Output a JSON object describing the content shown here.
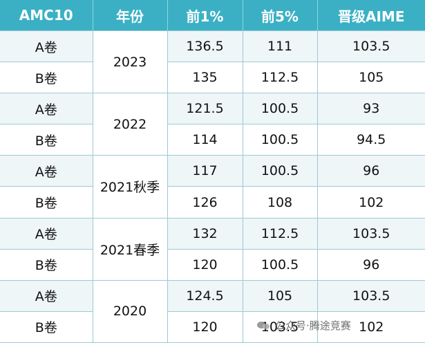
{
  "table": {
    "headers": [
      "AMC10",
      "年份",
      "前1%",
      "前5%",
      "晋级AIME"
    ],
    "groups": [
      {
        "year": "2023",
        "rows": [
          {
            "paper": "A卷",
            "top1": "136.5",
            "top5": "111",
            "aime": "103.5"
          },
          {
            "paper": "B卷",
            "top1": "135",
            "top5": "112.5",
            "aime": "105"
          }
        ]
      },
      {
        "year": "2022",
        "rows": [
          {
            "paper": "A卷",
            "top1": "121.5",
            "top5": "100.5",
            "aime": "93"
          },
          {
            "paper": "B卷",
            "top1": "114",
            "top5": "100.5",
            "aime": "94.5"
          }
        ]
      },
      {
        "year": "2021秋季",
        "rows": [
          {
            "paper": "A卷",
            "top1": "117",
            "top5": "100.5",
            "aime": "96"
          },
          {
            "paper": "B卷",
            "top1": "126",
            "top5": "108",
            "aime": "102"
          }
        ]
      },
      {
        "year": "2021春季",
        "rows": [
          {
            "paper": "A卷",
            "top1": "132",
            "top5": "112.5",
            "aime": "103.5"
          },
          {
            "paper": "B卷",
            "top1": "120",
            "top5": "100.5",
            "aime": "96"
          }
        ]
      },
      {
        "year": "2020",
        "rows": [
          {
            "paper": "A卷",
            "top1": "124.5",
            "top5": "105",
            "aime": "103.5"
          },
          {
            "paper": "B卷",
            "top1": "120",
            "top5": "103.5",
            "aime": "102"
          }
        ]
      }
    ]
  },
  "watermark": {
    "text": "公众号·腾途竞赛"
  }
}
